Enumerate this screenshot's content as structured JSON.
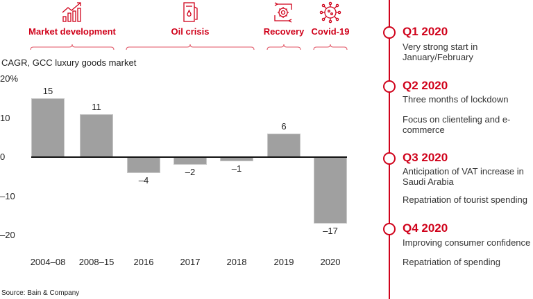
{
  "colors": {
    "accent": "#d0021b",
    "bar": "#a0a0a0"
  },
  "phases": [
    {
      "label": "Market development",
      "icon": "growth-chart-icon"
    },
    {
      "label": "Oil crisis",
      "icon": "fuel-pump-icon"
    },
    {
      "label": "Recovery",
      "icon": "gear-cycle-icon"
    },
    {
      "label": "Covid-19",
      "icon": "virus-icon"
    }
  ],
  "chart_data": {
    "type": "bar",
    "ylabel": "CAGR, GCC luxury goods market",
    "categories": [
      "2004–08",
      "2008–15",
      "2016",
      "2017",
      "2018",
      "2019",
      "2020"
    ],
    "values": [
      15,
      11,
      -4,
      -2,
      -1,
      6,
      -17
    ],
    "value_labels": [
      "15",
      "11",
      "–4",
      "–2",
      "–1",
      "6",
      "–17"
    ],
    "ylim": [
      -20,
      20
    ],
    "yticks": [
      "20%",
      "10",
      "0",
      "–10",
      "–20"
    ],
    "grid": false
  },
  "timeline": [
    {
      "title": "Q1 2020",
      "lines": [
        "Very strong start in January/February"
      ]
    },
    {
      "title": "Q2 2020",
      "lines": [
        "Three months of lockdown",
        "Focus on clienteling and e-commerce"
      ]
    },
    {
      "title": "Q3 2020",
      "lines": [
        "Anticipation of VAT increase in Saudi Arabia",
        "Repatriation of tourist spending"
      ]
    },
    {
      "title": "Q4 2020",
      "lines": [
        "Improving consumer confidence",
        "Repatriation of spending"
      ]
    }
  ],
  "source": "Source: Bain & Company"
}
